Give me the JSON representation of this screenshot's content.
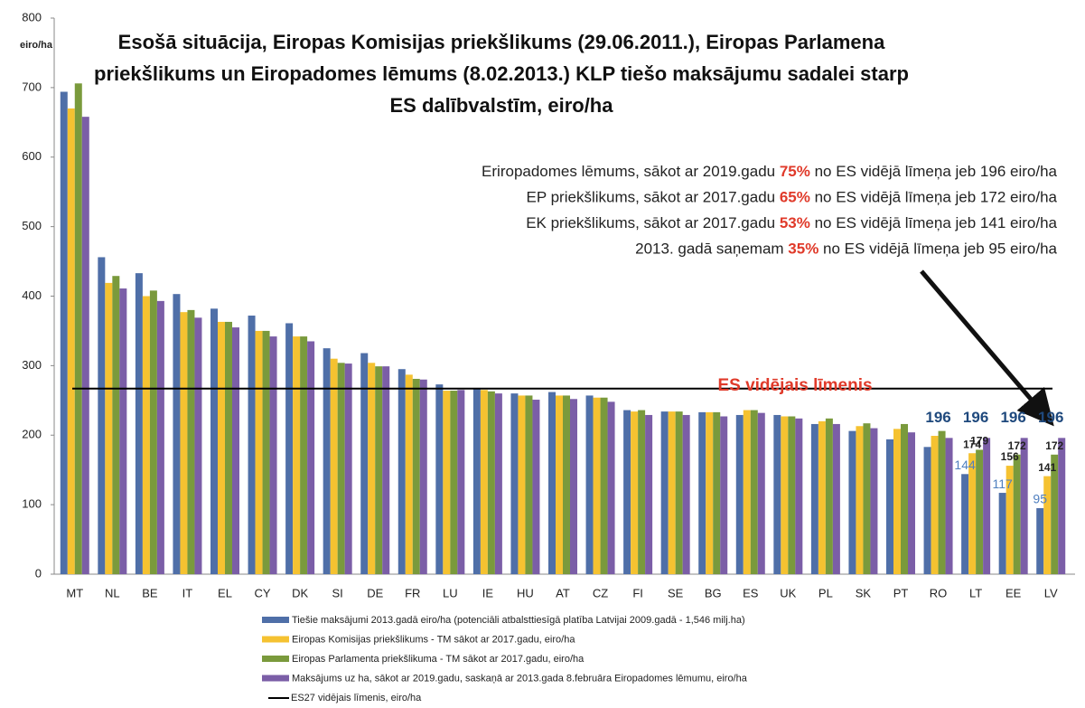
{
  "chart_data": {
    "type": "bar",
    "title": [
      "Esošā situācija, Eiropas Komisijas priekšlikums (29.06.2011.), Eiropas Parlamena",
      "priekšlikums un Eiropadomes lēmums (8.02.2013.) KLP tiešo maksājumu sadalei starp",
      "ES dalībvalstīm, eiro/ha"
    ],
    "y_unit_label": "eiro/ha",
    "categories": [
      "MT",
      "NL",
      "BE",
      "IT",
      "EL",
      "CY",
      "DK",
      "SI",
      "DE",
      "FR",
      "LU",
      "IE",
      "HU",
      "AT",
      "CZ",
      "FI",
      "SE",
      "BG",
      "ES",
      "UK",
      "PL",
      "SK",
      "PT",
      "RO",
      "LT",
      "EE",
      "LV"
    ],
    "series": [
      {
        "name": "Tiešie maksājumi 2013.gadā  eiro/ha (potenciāli atbalsttiesīgā platība Latvijai 2009.gadā  - 1,546 milj.ha)",
        "color": "#4f6fa8",
        "label_color": "#4f7fbf",
        "values": [
          694,
          456,
          433,
          403,
          382,
          372,
          361,
          325,
          318,
          295,
          273,
          268,
          260,
          262,
          257,
          236,
          234,
          233,
          229,
          229,
          216,
          206,
          194,
          183,
          144,
          117,
          95
        ],
        "value_labels": [
          null,
          null,
          null,
          null,
          null,
          null,
          null,
          null,
          null,
          null,
          null,
          null,
          null,
          null,
          null,
          null,
          null,
          null,
          null,
          null,
          null,
          null,
          null,
          null,
          "144",
          "117",
          "95"
        ]
      },
      {
        "name": "Eiropas Komisijas priekšlikums - TM sākot ar 2017.gadu, eiro/ha",
        "color": "#f5c231",
        "label_color": "#222222",
        "values": [
          670,
          419,
          400,
          377,
          363,
          350,
          342,
          310,
          304,
          287,
          264,
          265,
          257,
          257,
          254,
          234,
          234,
          233,
          236,
          227,
          220,
          213,
          209,
          199,
          174,
          156,
          141
        ],
        "value_labels": [
          null,
          null,
          null,
          null,
          null,
          null,
          null,
          null,
          null,
          null,
          null,
          null,
          null,
          null,
          null,
          null,
          null,
          null,
          null,
          null,
          null,
          null,
          null,
          null,
          "174",
          "156",
          "141"
        ]
      },
      {
        "name": "Eiropas Parlamenta priekšlikuma - TM sākot ar 2017.gadu,  eiro/ha",
        "color": "#7a9a3c",
        "label_color": "#222222",
        "values": [
          706,
          429,
          408,
          380,
          363,
          350,
          342,
          304,
          299,
          281,
          264,
          263,
          257,
          257,
          254,
          236,
          234,
          233,
          236,
          227,
          224,
          217,
          216,
          206,
          179,
          172,
          172
        ],
        "value_labels": [
          null,
          null,
          null,
          null,
          null,
          null,
          null,
          null,
          null,
          null,
          null,
          null,
          null,
          null,
          null,
          null,
          null,
          null,
          null,
          null,
          null,
          null,
          null,
          null,
          "179",
          "172",
          "172"
        ]
      },
      {
        "name": "Maksājums uz ha, sākot ar 2019.gadu, saskaņā ar 2013.gada  8.februāra Eiropadomes lēmumu, eiro/ha",
        "color": "#7b5ea7",
        "label_color": "#1f497d",
        "values": [
          658,
          411,
          393,
          369,
          355,
          342,
          335,
          303,
          299,
          280,
          265,
          260,
          251,
          252,
          248,
          229,
          229,
          227,
          232,
          224,
          216,
          210,
          204,
          196,
          196,
          196,
          196
        ],
        "value_labels": [
          null,
          null,
          null,
          null,
          null,
          null,
          null,
          null,
          null,
          null,
          null,
          null,
          null,
          null,
          null,
          null,
          null,
          null,
          null,
          null,
          null,
          null,
          null,
          "196",
          "196",
          "196",
          "196"
        ]
      }
    ],
    "reference_line": {
      "name": "ES27 vidējais līmenis, eiro/ha",
      "value": 267,
      "label": "ES vidējais līmenis",
      "color": "#000000",
      "label_color": "#e03a2a"
    },
    "annotations": [
      [
        "Eriropadomes lēmums, sākot ar 2019.gadu ",
        "75%",
        " no ES vidējā līmeņa jeb 196 eiro/ha"
      ],
      [
        "EP priekšlikums, sākot ar 2017.gadu ",
        "65%",
        " no ES vidējā līmeņa jeb 172 eiro/ha"
      ],
      [
        "EK priekšlikums, sākot ar 2017.gadu ",
        "53%",
        " no ES vidējā līmeņa jeb 141 eiro/ha"
      ],
      [
        "2013. gadā saņemam ",
        "35%",
        " no ES vidējā līmeņa jeb 95 eiro/ha"
      ]
    ],
    "ylim": [
      0,
      800
    ],
    "yticks": [
      0,
      100,
      200,
      300,
      400,
      500,
      600,
      700,
      800
    ],
    "grid": false
  }
}
